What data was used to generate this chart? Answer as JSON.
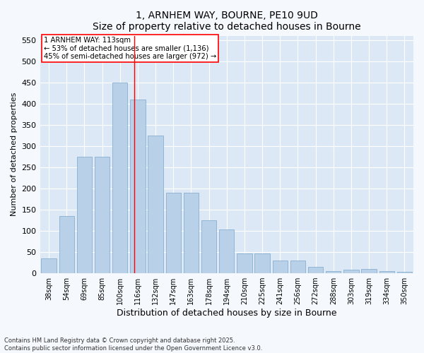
{
  "title1": "1, ARNHEM WAY, BOURNE, PE10 9UD",
  "title2": "Size of property relative to detached houses in Bourne",
  "xlabel": "Distribution of detached houses by size in Bourne",
  "ylabel": "Number of detached properties",
  "categories": [
    "38sqm",
    "54sqm",
    "69sqm",
    "85sqm",
    "100sqm",
    "116sqm",
    "132sqm",
    "147sqm",
    "163sqm",
    "178sqm",
    "194sqm",
    "210sqm",
    "225sqm",
    "241sqm",
    "256sqm",
    "272sqm",
    "288sqm",
    "303sqm",
    "319sqm",
    "334sqm",
    "350sqm"
  ],
  "values": [
    35,
    135,
    275,
    275,
    450,
    410,
    325,
    190,
    190,
    125,
    103,
    46,
    46,
    30,
    30,
    15,
    5,
    8,
    10,
    5,
    3
  ],
  "bar_color": "#b8d0e8",
  "bar_edge_color": "#7ba7c8",
  "vline_label": "1 ARNHEM WAY: 113sqm",
  "annotation_line1": "← 53% of detached houses are smaller (1,136)",
  "annotation_line2": "45% of semi-detached houses are larger (972) →",
  "ylim": [
    0,
    560
  ],
  "yticks": [
    0,
    50,
    100,
    150,
    200,
    250,
    300,
    350,
    400,
    450,
    500,
    550
  ],
  "footnote1": "Contains HM Land Registry data © Crown copyright and database right 2025.",
  "footnote2": "Contains public sector information licensed under the Open Government Licence v3.0.",
  "fig_bg_color": "#f5f8fc",
  "plot_bg": "#dce8f5"
}
